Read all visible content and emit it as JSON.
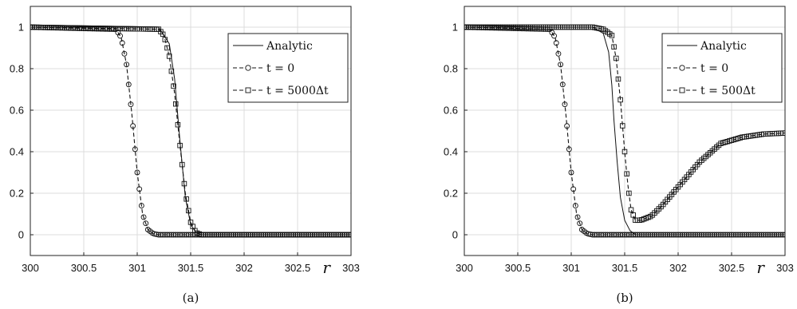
{
  "chart_data": [
    {
      "type": "line",
      "caption": "(a)",
      "xlabel": "r",
      "xlim": [
        300,
        303
      ],
      "ylim": [
        -0.1,
        1.1
      ],
      "x_ticks": [
        "300",
        "300.5",
        "301",
        "301.5",
        "302",
        "302.5",
        "303"
      ],
      "y_ticks": [
        "0",
        "0.2",
        "0.4",
        "0.6",
        "0.8",
        "1"
      ],
      "grid": true,
      "legend_position": "top-right",
      "legend": [
        "Analytic",
        "t = 0",
        "t = 5000Δt"
      ],
      "series": [
        {
          "name": "Analytic",
          "marker": "none",
          "style": "solid",
          "x": [
            300,
            300.8,
            300.9,
            301.2,
            301.3,
            301.35,
            301.4,
            301.45,
            301.5,
            301.55,
            301.6,
            303
          ],
          "y": [
            1,
            1,
            1,
            1,
            0.92,
            0.75,
            0.45,
            0.18,
            0.05,
            0.01,
            0,
            0
          ]
        },
        {
          "name": "t = 0",
          "marker": "circle",
          "style": "dashed",
          "x": [
            300,
            300.8,
            300.85,
            300.9,
            300.95,
            301.0,
            301.05,
            301.1,
            301.15,
            301.2,
            303
          ],
          "y": [
            1,
            0.99,
            0.95,
            0.82,
            0.58,
            0.3,
            0.1,
            0.025,
            0.005,
            0,
            0
          ]
        },
        {
          "name": "t = 5000Δt",
          "marker": "square",
          "style": "dashed",
          "x": [
            300,
            301.2,
            301.25,
            301.3,
            301.35,
            301.4,
            301.45,
            301.5,
            301.55,
            301.6,
            303
          ],
          "y": [
            1,
            0.99,
            0.96,
            0.86,
            0.68,
            0.43,
            0.2,
            0.06,
            0.01,
            0,
            0
          ]
        }
      ]
    },
    {
      "type": "line",
      "caption": "(b)",
      "xlabel": "r",
      "xlim": [
        300,
        303
      ],
      "ylim": [
        -0.1,
        1.1
      ],
      "x_ticks": [
        "300",
        "300.5",
        "301",
        "301.5",
        "302",
        "302.5",
        "303"
      ],
      "y_ticks": [
        "0",
        "0.2",
        "0.4",
        "0.6",
        "0.8",
        "1"
      ],
      "grid": true,
      "legend_position": "top-right",
      "legend": [
        "Analytic",
        "t = 0",
        "t = 500Δt"
      ],
      "series": [
        {
          "name": "Analytic",
          "marker": "none",
          "style": "solid",
          "x": [
            300,
            301.2,
            301.3,
            301.35,
            301.38,
            301.4,
            301.43,
            301.46,
            301.5,
            301.55,
            301.6,
            303
          ],
          "y": [
            1,
            1,
            0.97,
            0.88,
            0.72,
            0.55,
            0.35,
            0.18,
            0.07,
            0.02,
            0,
            0
          ]
        },
        {
          "name": "t = 0",
          "marker": "circle",
          "style": "dashed",
          "x": [
            300,
            300.8,
            300.85,
            300.9,
            300.95,
            301.0,
            301.05,
            301.1,
            301.15,
            301.2,
            303
          ],
          "y": [
            1,
            0.99,
            0.95,
            0.82,
            0.58,
            0.3,
            0.1,
            0.025,
            0.005,
            0,
            0
          ]
        },
        {
          "name": "t = 500Δt",
          "marker": "square",
          "style": "dashed",
          "x": [
            300,
            301.2,
            301.3,
            301.38,
            301.42,
            301.46,
            301.5,
            301.53,
            301.56,
            301.6,
            301.65,
            301.75,
            301.85,
            302.0,
            302.2,
            302.4,
            302.6,
            302.8,
            303
          ],
          "y": [
            1,
            1,
            0.99,
            0.96,
            0.85,
            0.65,
            0.4,
            0.24,
            0.12,
            0.07,
            0.07,
            0.09,
            0.14,
            0.23,
            0.35,
            0.44,
            0.47,
            0.485,
            0.49
          ]
        }
      ]
    }
  ]
}
